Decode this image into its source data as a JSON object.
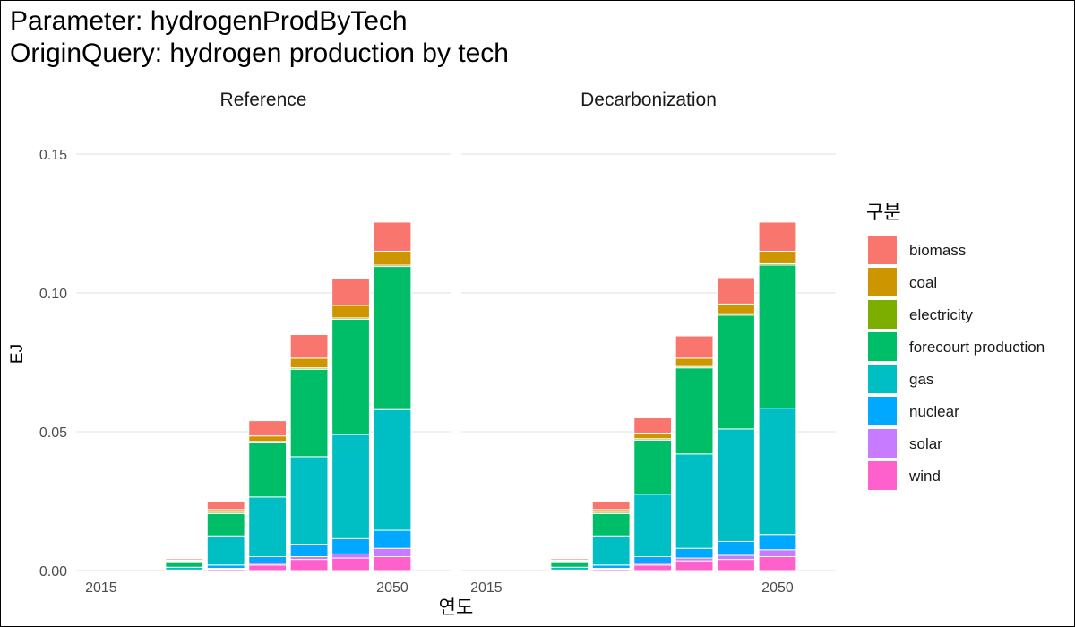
{
  "chart_data": {
    "type": "bar",
    "stacked": true,
    "title_lines": [
      "Parameter: hydrogenProdByTech",
      "OriginQuery: hydrogen production by tech"
    ],
    "xlabel": "연도",
    "ylabel": "EJ",
    "ylim": [
      0,
      0.16
    ],
    "y_ticks": [
      0,
      0.05,
      0.1,
      0.15
    ],
    "y_tick_labels": [
      "0.00",
      "0.05",
      "0.10",
      "0.15"
    ],
    "xlim": [
      2012,
      2057
    ],
    "x_ticks": [
      2015,
      2050
    ],
    "x_tick_labels": [
      "2015",
      "2050"
    ],
    "bar_width_years": 4.5,
    "grid": true,
    "legend_title": "구분",
    "legend_position": "right",
    "series": [
      {
        "name": "biomass",
        "color": "#F8766D"
      },
      {
        "name": "coal",
        "color": "#CD9600"
      },
      {
        "name": "electricity",
        "color": "#7CAE00"
      },
      {
        "name": "forecourt production",
        "color": "#00BE67"
      },
      {
        "name": "gas",
        "color": "#00BFC4"
      },
      {
        "name": "nuclear",
        "color": "#00A9FF"
      },
      {
        "name": "solar",
        "color": "#C77CFF"
      },
      {
        "name": "wind",
        "color": "#FF61CC"
      }
    ],
    "stack_order": [
      "wind",
      "solar",
      "nuclear",
      "gas",
      "forecourt production",
      "electricity",
      "coal",
      "biomass"
    ],
    "panels": [
      {
        "name": "Reference",
        "x": [
          2015,
          2020,
          2025,
          2030,
          2035,
          2040,
          2045,
          2050
        ],
        "values": {
          "wind": [
            0,
            0,
            0,
            0.0005,
            0.002,
            0.004,
            0.0045,
            0.005
          ],
          "solar": [
            0,
            0,
            0,
            0.0003,
            0.0007,
            0.001,
            0.0015,
            0.003
          ],
          "nuclear": [
            0,
            0,
            0.0002,
            0.0012,
            0.0023,
            0.0045,
            0.0055,
            0.0065
          ],
          "gas": [
            0,
            0,
            0.001,
            0.0105,
            0.0215,
            0.0315,
            0.0375,
            0.0435
          ],
          "forecourt production": [
            0,
            0,
            0.002,
            0.008,
            0.0195,
            0.0315,
            0.0415,
            0.0515
          ],
          "electricity": [
            0,
            0,
            0.0003,
            0.0005,
            0.0005,
            0.0005,
            0.0005,
            0.0005
          ],
          "coal": [
            0,
            0,
            0.0003,
            0.001,
            0.002,
            0.0035,
            0.0045,
            0.005
          ],
          "biomass": [
            0,
            0,
            0.0005,
            0.003,
            0.0055,
            0.0085,
            0.0095,
            0.0105
          ]
        }
      },
      {
        "name": "Decarbonization",
        "x": [
          2015,
          2020,
          2025,
          2030,
          2035,
          2040,
          2045,
          2050
        ],
        "values": {
          "wind": [
            0,
            0,
            0,
            0.0005,
            0.002,
            0.0035,
            0.004,
            0.005
          ],
          "solar": [
            0,
            0,
            0,
            0.0003,
            0.0007,
            0.001,
            0.0015,
            0.0025
          ],
          "nuclear": [
            0,
            0,
            0.0002,
            0.0012,
            0.0023,
            0.0035,
            0.005,
            0.0055
          ],
          "gas": [
            0,
            0,
            0.001,
            0.0105,
            0.0225,
            0.034,
            0.0405,
            0.0455
          ],
          "forecourt production": [
            0,
            0,
            0.002,
            0.008,
            0.0195,
            0.031,
            0.041,
            0.0515
          ],
          "electricity": [
            0,
            0,
            0.0003,
            0.0005,
            0.0005,
            0.0005,
            0.0005,
            0.0005
          ],
          "coal": [
            0,
            0,
            0.0003,
            0.001,
            0.002,
            0.003,
            0.0035,
            0.0045
          ],
          "biomass": [
            0,
            0,
            0.0005,
            0.003,
            0.0055,
            0.008,
            0.0095,
            0.0105
          ]
        }
      }
    ]
  }
}
